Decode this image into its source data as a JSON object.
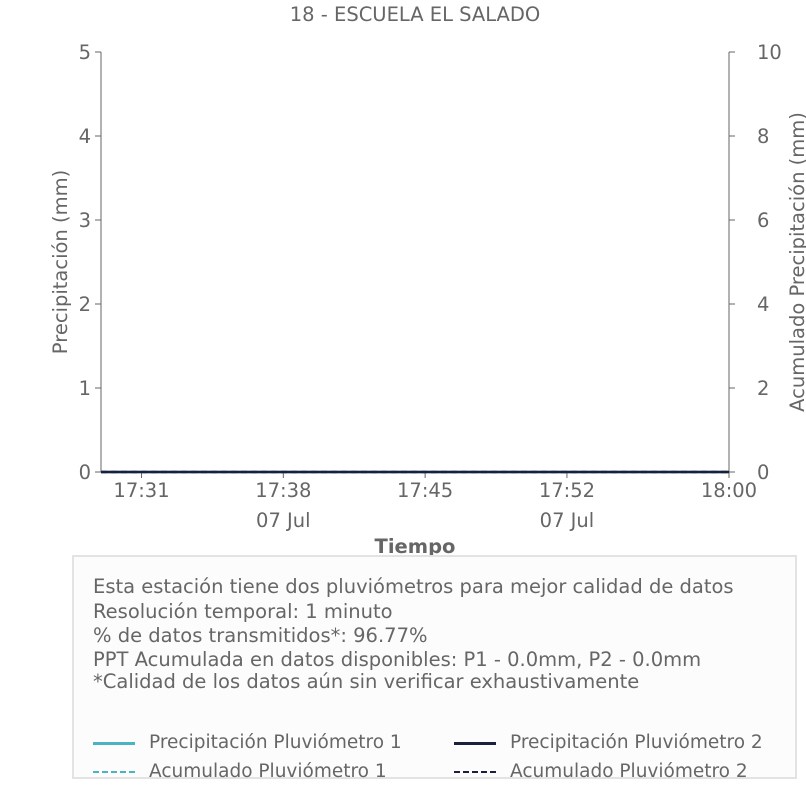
{
  "chart_data": {
    "type": "line",
    "title": "18 - ESCUELA EL SALADO",
    "xlabel": "Tiempo",
    "ylabel": "Precipitación (mm)",
    "y2label": "Acumulado Precipitación (mm)",
    "ylim": [
      0,
      5
    ],
    "y2lim": [
      0,
      10
    ],
    "yticks": [
      "0",
      "1",
      "2",
      "3",
      "4",
      "5"
    ],
    "y2ticks": [
      "0",
      "2",
      "4",
      "6",
      "8",
      "10"
    ],
    "xlim": [
      "17:29",
      "18:00"
    ],
    "xticks": [
      {
        "t": "17:31",
        "label": "17:31",
        "date": ""
      },
      {
        "t": "17:38",
        "label": "17:38",
        "date": "07 Jul"
      },
      {
        "t": "17:45",
        "label": "17:45",
        "date": ""
      },
      {
        "t": "17:52",
        "label": "17:52",
        "date": "07 Jul"
      },
      {
        "t": "18:00",
        "label": "18:00",
        "date": ""
      }
    ],
    "grid": false,
    "series": [
      {
        "name": "Precipitación Pluviómetro 1",
        "axis": "left",
        "style": "solid",
        "color": "#4ab3c4",
        "x": [
          "17:29",
          "18:00"
        ],
        "y": [
          0,
          0
        ]
      },
      {
        "name": "Precipitación Pluviómetro 2",
        "axis": "left",
        "style": "solid",
        "color": "#1b1f3b",
        "x": [
          "17:29",
          "18:00"
        ],
        "y": [
          0,
          0
        ]
      },
      {
        "name": "Acumulado Pluviómetro 1",
        "axis": "right",
        "style": "dashed",
        "color": "#4ab3c4",
        "x": [
          "17:29",
          "18:00"
        ],
        "y": [
          0,
          0
        ]
      },
      {
        "name": "Acumulado Pluviómetro 2",
        "axis": "right",
        "style": "dashed",
        "color": "#1b1f3b",
        "x": [
          "17:29",
          "18:00"
        ],
        "y": [
          0,
          0
        ]
      }
    ]
  },
  "info": {
    "lines": [
      "Esta estación tiene dos pluviómetros para mejor calidad de datos",
      "Resolución temporal: 1 minuto",
      "% de datos transmitidos*: 96.77%",
      "PPT Acumulada en datos disponibles: P1 - 0.0mm, P2 - 0.0mm",
      "*Calidad de los datos aún sin verificar exhaustivamente"
    ]
  },
  "legend": {
    "items": [
      {
        "label": "Precipitación Pluviómetro 1",
        "color": "#4ab3c4",
        "style": "solid"
      },
      {
        "label": "Precipitación Pluviómetro 2",
        "color": "#1b1f3b",
        "style": "solid"
      },
      {
        "label": "Acumulado Pluviómetro 1",
        "color": "#4ab3c4",
        "style": "dashed"
      },
      {
        "label": "Acumulado Pluviómetro 2",
        "color": "#1b1f3b",
        "style": "dashed"
      }
    ]
  }
}
